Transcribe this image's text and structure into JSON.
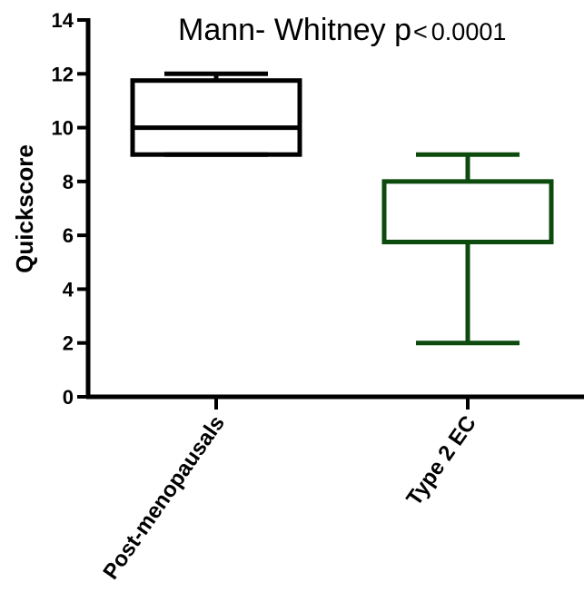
{
  "chart_data": {
    "type": "box",
    "title": "",
    "annotation": {
      "text": "Mann- Whitney p",
      "comparator": "<",
      "value": "0.0001"
    },
    "xlabel": "",
    "ylabel": "Quickscore",
    "ylim": [
      0,
      14
    ],
    "yticks": [
      "0",
      "2",
      "4",
      "6",
      "8",
      "10",
      "12",
      "14"
    ],
    "categories": [
      "Post-menopausals",
      "Type 2 EC"
    ],
    "boxes": [
      {
        "category": "Post-menopausals",
        "min": 9,
        "q1": 9,
        "median": 10,
        "q3": 11.75,
        "max": 12,
        "color": "#000000"
      },
      {
        "category": "Type 2 EC",
        "min": 2,
        "q1": 5.75,
        "median": 5.75,
        "q3": 8,
        "max": 9,
        "color": "#0d4a0d"
      }
    ],
    "grid": false,
    "legend": "none"
  }
}
